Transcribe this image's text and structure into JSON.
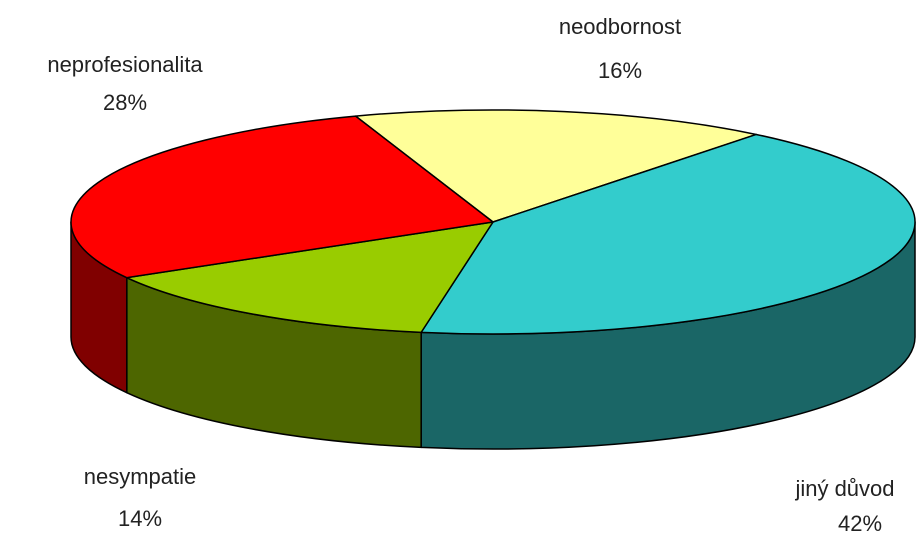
{
  "chart_data": {
    "type": "pie3d",
    "categories": [
      "neodbornost",
      "jiný důvod",
      "nesympatie",
      "neprofesionalita"
    ],
    "values": [
      16,
      42,
      14,
      28
    ],
    "value_labels": [
      "16%",
      "42%",
      "14%",
      "28%"
    ],
    "colors": [
      "#ffff99",
      "#33cccc",
      "#99cc00",
      "#ff0000"
    ]
  }
}
